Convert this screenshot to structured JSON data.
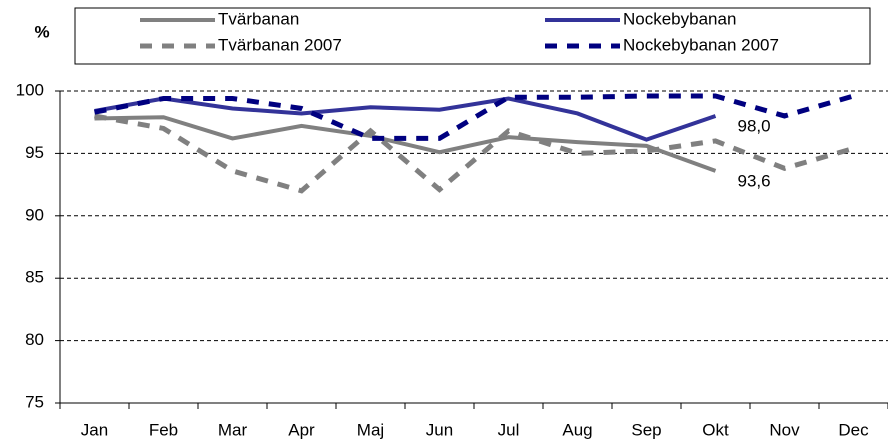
{
  "chart_data": {
    "type": "line",
    "ylabel": "%",
    "categories": [
      "Jan",
      "Feb",
      "Mar",
      "Apr",
      "Maj",
      "Jun",
      "Jul",
      "Aug",
      "Sep",
      "Okt",
      "Nov",
      "Dec"
    ],
    "series": [
      {
        "name": "Tvärbanan",
        "color": "#808080",
        "dashed": false,
        "values": [
          97.8,
          97.9,
          96.2,
          97.2,
          96.4,
          95.1,
          96.3,
          95.9,
          95.6,
          93.6,
          null,
          null
        ],
        "value_labels": [
          null,
          null,
          null,
          null,
          null,
          null,
          null,
          null,
          null,
          "93,6",
          null,
          null
        ]
      },
      {
        "name": "Nockebybanan",
        "color": "#333399",
        "dashed": false,
        "values": [
          98.4,
          99.4,
          98.6,
          98.2,
          98.7,
          98.5,
          99.4,
          98.2,
          96.1,
          98.0,
          null,
          null
        ],
        "value_labels": [
          null,
          null,
          null,
          null,
          null,
          null,
          null,
          null,
          null,
          "98,0",
          null,
          null
        ]
      },
      {
        "name": "Tvärbanan 2007",
        "color": "#808080",
        "dashed": true,
        "values": [
          98.0,
          97.0,
          93.6,
          92.0,
          96.8,
          92.1,
          96.8,
          95.0,
          95.2,
          96.0,
          93.8,
          95.4
        ]
      },
      {
        "name": "Nockebybanan 2007",
        "color": "#000080",
        "dashed": true,
        "values": [
          98.3,
          99.4,
          99.4,
          98.6,
          96.2,
          96.2,
          99.5,
          99.5,
          99.6,
          99.6,
          98.0,
          99.6
        ]
      }
    ],
    "ylim": [
      75,
      100
    ],
    "yticks": [
      75,
      80,
      85,
      90,
      95,
      100
    ],
    "grid": true,
    "legend": "top"
  }
}
